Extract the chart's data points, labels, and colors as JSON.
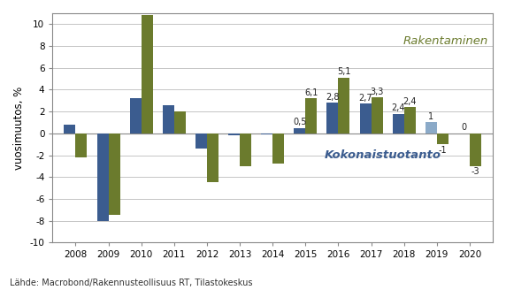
{
  "years": [
    2008,
    2009,
    2010,
    2011,
    2012,
    2013,
    2014,
    2015,
    2016,
    2017,
    2018,
    2019,
    2020
  ],
  "kokonaistuotanto": [
    0.8,
    -8.0,
    3.2,
    2.6,
    -1.4,
    -0.2,
    -0.1,
    0.5,
    2.8,
    2.7,
    1.8,
    1.0,
    0.0
  ],
  "rakentaminen": [
    -2.2,
    -7.5,
    10.8,
    2.0,
    -4.5,
    -3.0,
    -2.8,
    3.2,
    5.1,
    3.3,
    2.4,
    -1.0,
    -3.0
  ],
  "bar_color_kokonaistuotanto": "#3B5C8F",
  "bar_color_kokonaistuotanto_2019": "#8BAAC8",
  "bar_color_rakentaminen": "#6B7B2D",
  "ylabel": "vuosimuutos, %",
  "ylim": [
    -10,
    11
  ],
  "yticks": [
    -10,
    -8,
    -6,
    -4,
    -2,
    0,
    2,
    4,
    6,
    8,
    10
  ],
  "legend_rakentaminen": "Rakentaminen",
  "legend_kokonaistuotanto": "Kokonaistuotanto",
  "source": "Lähde: Macrobond/Rakennusteollisuus RT, Tilastokeskus",
  "bar_width": 0.35,
  "label_fontsize": 7.0,
  "axis_fontsize": 8.5,
  "legend_fontsize": 9.5
}
